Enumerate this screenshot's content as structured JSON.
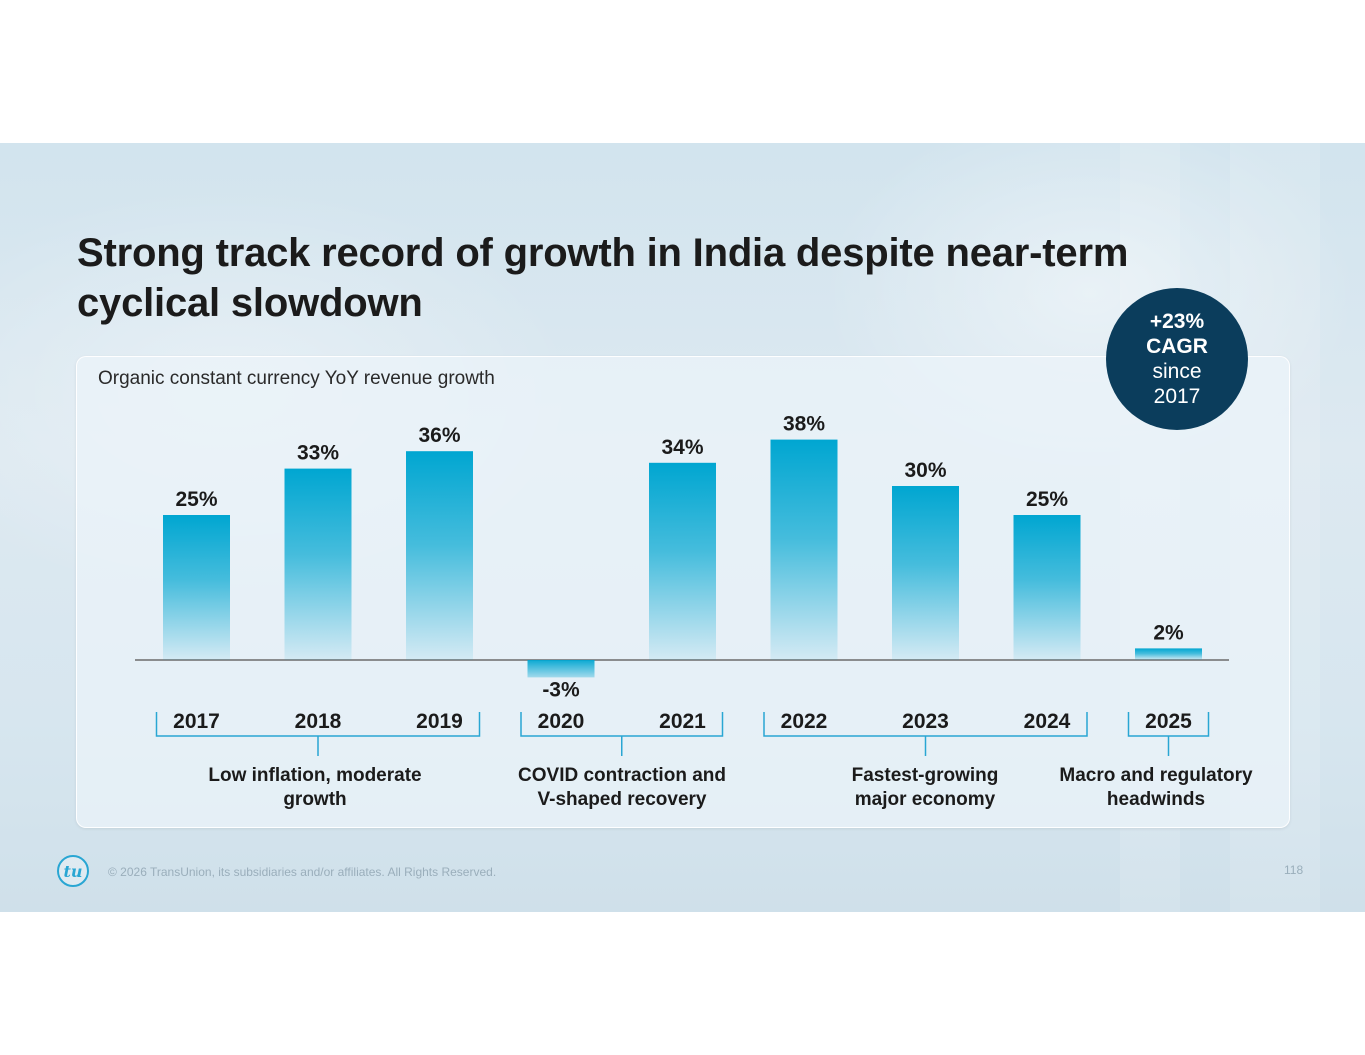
{
  "slide": {
    "title": "Strong track record of growth in India despite near-term cyclical slowdown",
    "subtitle": "Organic constant currency YoY revenue growth"
  },
  "badge": {
    "line1": "+23%",
    "line2": "CAGR",
    "line3": "since",
    "line4": "2017"
  },
  "chart_data": {
    "type": "bar",
    "title": "Organic constant currency YoY revenue growth",
    "categories": [
      "2017",
      "2018",
      "2019",
      "2020",
      "2021",
      "2022",
      "2023",
      "2024",
      "2025"
    ],
    "values": [
      25,
      33,
      36,
      -3,
      34,
      38,
      30,
      25,
      2
    ],
    "value_labels": [
      "25%",
      "33%",
      "36%",
      "-3%",
      "34%",
      "38%",
      "30%",
      "25%",
      "2%"
    ],
    "unit": "%",
    "ylim": [
      -3,
      38
    ],
    "xlabel": "",
    "ylabel": "",
    "grid": false,
    "bar_color": "#00a6d1",
    "groups": [
      {
        "label_line1": "Low inflation, moderate",
        "label_line2": "growth",
        "start": 0,
        "end": 2
      },
      {
        "label_line1": "COVID contraction and",
        "label_line2": "V-shaped recovery",
        "start": 3,
        "end": 4
      },
      {
        "label_line1": "Fastest-growing",
        "label_line2": "major economy",
        "start": 5,
        "end": 7
      },
      {
        "label_line1": "Macro and regulatory",
        "label_line2": "headwinds",
        "start": 8,
        "end": 8
      }
    ]
  },
  "footer": {
    "logo_text": "tu",
    "copyright": "© 2026 TransUnion, its subsidiaries and/or affiliates. All Rights Reserved.",
    "page_number": "118"
  }
}
